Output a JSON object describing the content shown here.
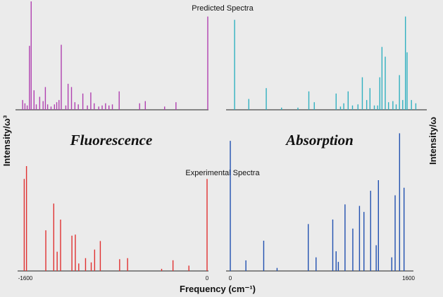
{
  "labels": {
    "top_title": "Predicted Spectra",
    "bottom_title": "Experimental Spectra",
    "fluorescence": "Fluorescence",
    "absorption": "Absorption",
    "ylabel_left": "Intensity/ω³",
    "ylabel_right": "Intensity/ω",
    "xlabel": "Frequency (cm⁻¹)"
  },
  "colors": {
    "pred_fluor": "#b040b0",
    "pred_abs": "#30b0c0",
    "exp_fluor": "#e03030",
    "exp_abs": "#2050b0"
  },
  "chart_data": [
    {
      "type": "bar",
      "xlim": [
        -1600,
        0
      ],
      "ylim": [
        0,
        1
      ],
      "lines": [
        {
          "x": -1630,
          "y": 0.09
        },
        {
          "x": -1610,
          "y": 0.06
        },
        {
          "x": -1590,
          "y": 0.04
        },
        {
          "x": -1570,
          "y": 0.59
        },
        {
          "x": -1555,
          "y": 1.0
        },
        {
          "x": -1530,
          "y": 0.18
        },
        {
          "x": -1510,
          "y": 0.05
        },
        {
          "x": -1480,
          "y": 0.12
        },
        {
          "x": -1450,
          "y": 0.08
        },
        {
          "x": -1430,
          "y": 0.21
        },
        {
          "x": -1410,
          "y": 0.05
        },
        {
          "x": -1380,
          "y": 0.03
        },
        {
          "x": -1350,
          "y": 0.05
        },
        {
          "x": -1330,
          "y": 0.07
        },
        {
          "x": -1310,
          "y": 0.09
        },
        {
          "x": -1290,
          "y": 0.6
        },
        {
          "x": -1250,
          "y": 0.04
        },
        {
          "x": -1230,
          "y": 0.24
        },
        {
          "x": -1200,
          "y": 0.21
        },
        {
          "x": -1170,
          "y": 0.07
        },
        {
          "x": -1140,
          "y": 0.05
        },
        {
          "x": -1100,
          "y": 0.15
        },
        {
          "x": -1060,
          "y": 0.04
        },
        {
          "x": -1030,
          "y": 0.16
        },
        {
          "x": -1000,
          "y": 0.06
        },
        {
          "x": -960,
          "y": 0.03
        },
        {
          "x": -930,
          "y": 0.04
        },
        {
          "x": -900,
          "y": 0.06
        },
        {
          "x": -870,
          "y": 0.04
        },
        {
          "x": -840,
          "y": 0.05
        },
        {
          "x": -780,
          "y": 0.17
        },
        {
          "x": -600,
          "y": 0.06
        },
        {
          "x": -550,
          "y": 0.08
        },
        {
          "x": -380,
          "y": 0.03
        },
        {
          "x": -280,
          "y": 0.07
        },
        {
          "x": 0,
          "y": 0.86
        }
      ]
    },
    {
      "type": "bar",
      "xlim": [
        0,
        1600
      ],
      "ylim": [
        0,
        1
      ],
      "lines": [
        {
          "x": 20,
          "y": 0.83
        },
        {
          "x": 150,
          "y": 0.1
        },
        {
          "x": 310,
          "y": 0.2
        },
        {
          "x": 450,
          "y": 0.02
        },
        {
          "x": 600,
          "y": 0.02
        },
        {
          "x": 700,
          "y": 0.17
        },
        {
          "x": 750,
          "y": 0.07
        },
        {
          "x": 950,
          "y": 0.15
        },
        {
          "x": 990,
          "y": 0.03
        },
        {
          "x": 1020,
          "y": 0.06
        },
        {
          "x": 1060,
          "y": 0.17
        },
        {
          "x": 1100,
          "y": 0.04
        },
        {
          "x": 1150,
          "y": 0.05
        },
        {
          "x": 1190,
          "y": 0.3
        },
        {
          "x": 1230,
          "y": 0.09
        },
        {
          "x": 1260,
          "y": 0.2
        },
        {
          "x": 1300,
          "y": 0.04
        },
        {
          "x": 1330,
          "y": 0.04
        },
        {
          "x": 1350,
          "y": 0.3
        },
        {
          "x": 1370,
          "y": 0.58
        },
        {
          "x": 1400,
          "y": 0.49
        },
        {
          "x": 1430,
          "y": 0.07
        },
        {
          "x": 1470,
          "y": 0.08
        },
        {
          "x": 1500,
          "y": 0.05
        },
        {
          "x": 1530,
          "y": 0.32
        },
        {
          "x": 1560,
          "y": 0.09
        },
        {
          "x": 1585,
          "y": 0.86
        },
        {
          "x": 1600,
          "y": 0.53
        },
        {
          "x": 1640,
          "y": 0.09
        },
        {
          "x": 1680,
          "y": 0.06
        }
      ]
    },
    {
      "type": "bar",
      "xlim": [
        -1600,
        0
      ],
      "ylim": [
        0,
        1
      ],
      "xticks": [
        -1600,
        0
      ],
      "xticklabels": [
        "-1600",
        "0"
      ],
      "lines": [
        {
          "x": -1610,
          "y": 0.86
        },
        {
          "x": -1590,
          "y": 0.98
        },
        {
          "x": -1420,
          "y": 0.38
        },
        {
          "x": -1350,
          "y": 0.63
        },
        {
          "x": -1320,
          "y": 0.18
        },
        {
          "x": -1290,
          "y": 0.48
        },
        {
          "x": -1190,
          "y": 0.33
        },
        {
          "x": -1160,
          "y": 0.34
        },
        {
          "x": -1130,
          "y": 0.07
        },
        {
          "x": -1070,
          "y": 0.12
        },
        {
          "x": -1020,
          "y": 0.08
        },
        {
          "x": -990,
          "y": 0.2
        },
        {
          "x": -940,
          "y": 0.28
        },
        {
          "x": -770,
          "y": 0.11
        },
        {
          "x": -700,
          "y": 0.12
        },
        {
          "x": -400,
          "y": 0.02
        },
        {
          "x": -300,
          "y": 0.1
        },
        {
          "x": -160,
          "y": 0.05
        },
        {
          "x": 0,
          "y": 0.86
        }
      ]
    },
    {
      "type": "bar",
      "xlim": [
        0,
        1600
      ],
      "ylim": [
        0,
        1
      ],
      "xticks": [
        0,
        1600
      ],
      "xticklabels": [
        "0",
        "1600"
      ],
      "lines": [
        {
          "x": 0,
          "y": 0.86
        },
        {
          "x": 140,
          "y": 0.07
        },
        {
          "x": 300,
          "y": 0.2
        },
        {
          "x": 420,
          "y": 0.02
        },
        {
          "x": 700,
          "y": 0.31
        },
        {
          "x": 770,
          "y": 0.09
        },
        {
          "x": 920,
          "y": 0.34
        },
        {
          "x": 950,
          "y": 0.13
        },
        {
          "x": 970,
          "y": 0.06
        },
        {
          "x": 1030,
          "y": 0.44
        },
        {
          "x": 1100,
          "y": 0.28
        },
        {
          "x": 1160,
          "y": 0.43
        },
        {
          "x": 1200,
          "y": 0.39
        },
        {
          "x": 1260,
          "y": 0.53
        },
        {
          "x": 1310,
          "y": 0.17
        },
        {
          "x": 1330,
          "y": 0.6
        },
        {
          "x": 1450,
          "y": 0.09
        },
        {
          "x": 1480,
          "y": 0.5
        },
        {
          "x": 1520,
          "y": 0.91
        },
        {
          "x": 1560,
          "y": 0.55
        }
      ]
    }
  ]
}
